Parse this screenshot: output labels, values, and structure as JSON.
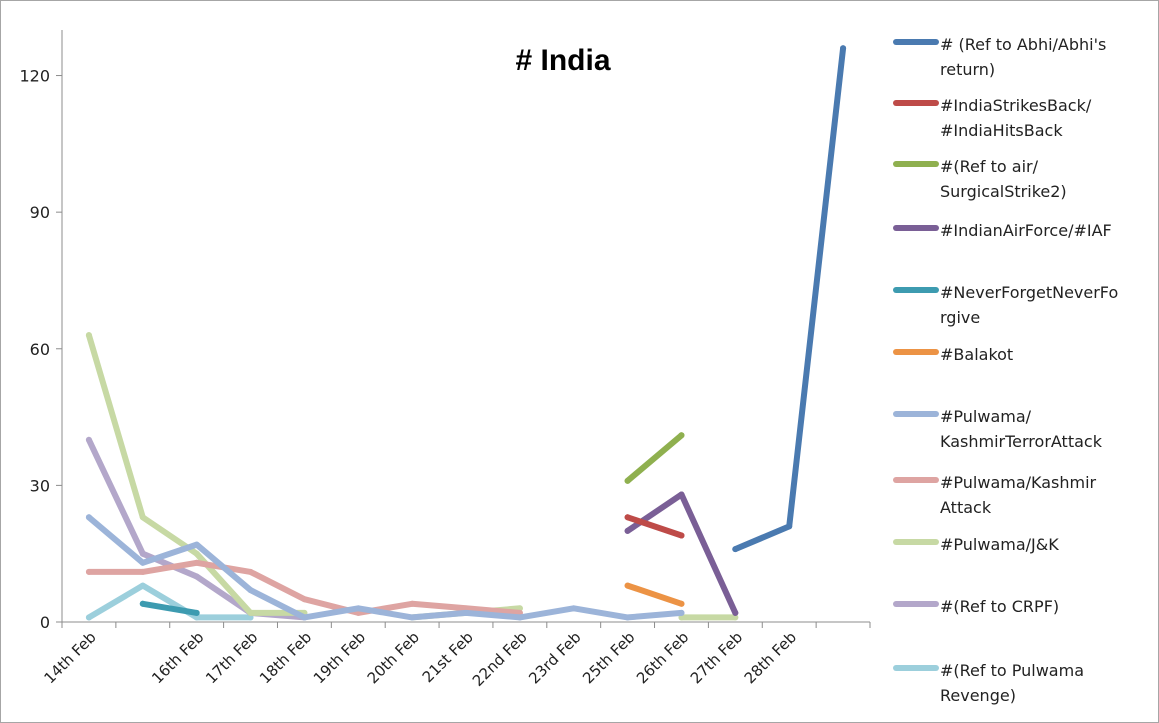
{
  "chart_data": {
    "type": "line",
    "title": "# India",
    "yticks": [
      "0",
      "30",
      "60",
      "90",
      "120"
    ],
    "ylim": [
      0,
      130
    ],
    "categories": [
      "14th Feb",
      "",
      "16th Feb",
      "17th Feb",
      "18th Feb",
      "19th Feb",
      "20th Feb",
      "21st Feb",
      "22nd Feb",
      "23rd Feb",
      "25th Feb",
      "26th Feb",
      "27th Feb",
      "28th Feb",
      ""
    ],
    "legend_position": "right",
    "grid": false,
    "series": [
      {
        "name": "# (Ref to Abhi/Abhi's return)",
        "legend_lines": [
          "# (Ref to Abhi/Abhi's",
          "return)"
        ],
        "color": "#4a7ab0",
        "values": [
          null,
          null,
          null,
          null,
          null,
          null,
          null,
          null,
          null,
          null,
          null,
          null,
          16,
          21,
          126
        ]
      },
      {
        "name": "#IndiaStrikesBack/ #IndiaHitsBack",
        "legend_lines": [
          "#IndiaStrikesBack/",
          "#IndiaHitsBack"
        ],
        "color": "#be4b48",
        "values": [
          null,
          null,
          null,
          null,
          null,
          null,
          null,
          null,
          null,
          null,
          23,
          19,
          null,
          null,
          null
        ]
      },
      {
        "name": "#(Ref to air/ SurgicalStrike2)",
        "legend_lines": [
          "#(Ref to air/",
          "SurgicalStrike2)"
        ],
        "color": "#8fb04f",
        "values": [
          null,
          null,
          null,
          null,
          null,
          null,
          null,
          null,
          null,
          null,
          31,
          41,
          null,
          null,
          null
        ]
      },
      {
        "name": "#IndianAirForce/#IAF",
        "legend_lines": [
          "#IndianAirForce/#IAF"
        ],
        "color": "#7a5f96",
        "values": [
          null,
          null,
          null,
          null,
          null,
          null,
          null,
          null,
          null,
          null,
          20,
          28,
          2,
          null,
          null
        ]
      },
      {
        "name": "#NeverForgetNeverForgive",
        "legend_lines": [
          "#NeverForgetNeverFo",
          "rgive"
        ],
        "color": "#3d9bb0",
        "values": [
          null,
          4,
          2,
          null,
          null,
          null,
          null,
          null,
          null,
          null,
          null,
          null,
          null,
          null,
          null
        ]
      },
      {
        "name": "#Balakot",
        "legend_lines": [
          "#Balakot"
        ],
        "color": "#ec9345",
        "values": [
          null,
          null,
          null,
          null,
          null,
          null,
          null,
          null,
          null,
          null,
          8,
          4,
          null,
          null,
          null
        ]
      },
      {
        "name": "#Pulwama/ KashmirTerrorAttack",
        "legend_lines": [
          "#Pulwama/",
          "KashmirTerrorAttack"
        ],
        "color": "#9cb4d9",
        "values": [
          23,
          13,
          17,
          7,
          1,
          3,
          1,
          2,
          1,
          3,
          1,
          2,
          null,
          null,
          null
        ]
      },
      {
        "name": "#Pulwama/Kashmir Attack",
        "legend_lines": [
          "#Pulwama/Kashmir",
          "Attack"
        ],
        "color": "#dea4a2",
        "values": [
          11,
          11,
          13,
          11,
          5,
          2,
          4,
          3,
          2,
          null,
          null,
          null,
          null,
          null,
          null
        ]
      },
      {
        "name": "#Pulwama/J&K",
        "legend_lines": [
          "#Pulwama/J&K"
        ],
        "color": "#c7d9a4",
        "values": [
          63,
          23,
          15,
          2,
          2,
          null,
          1,
          2,
          3,
          null,
          null,
          1,
          1,
          null,
          null
        ]
      },
      {
        "name": "#(Ref to CRPF)",
        "legend_lines": [
          "#(Ref to CRPF)"
        ],
        "color": "#b3a7ca",
        "values": [
          40,
          15,
          10,
          2,
          1,
          null,
          null,
          null,
          null,
          null,
          null,
          null,
          null,
          null,
          null
        ]
      },
      {
        "name": "#(Ref to Pulwama Revenge)",
        "legend_lines": [
          "#(Ref to Pulwama",
          "Revenge)"
        ],
        "color": "#9ccfdc",
        "values": [
          1,
          8,
          1,
          1,
          null,
          null,
          null,
          null,
          null,
          null,
          null,
          null,
          null,
          null,
          null
        ]
      }
    ]
  }
}
